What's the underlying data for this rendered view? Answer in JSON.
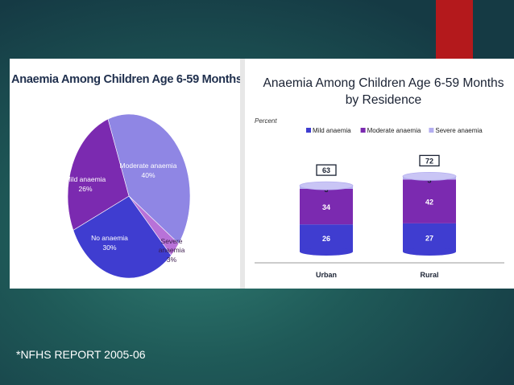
{
  "footnote": "*NFHS REPORT 2005-06",
  "colors": {
    "accent_red": "#b4191c",
    "mild": "#7b2ab0",
    "moderate": "#8f86e4",
    "none": "#3f3dd0",
    "severe": "#b872d8"
  },
  "chart_data": [
    {
      "type": "pie",
      "title": "Anaemia Among Children Age 6-59 Months",
      "slices": [
        {
          "label": "Moderate anaemia",
          "value": 40,
          "value_label": "40%",
          "color": "#8f86e4"
        },
        {
          "label": "Severe anaemia",
          "value": 3,
          "value_label": "3%",
          "color": "#b872d8"
        },
        {
          "label": "No anaemia",
          "value": 30,
          "value_label": "30%",
          "color": "#3f3dd0"
        },
        {
          "label": "Mild anaemia",
          "value": 26,
          "value_label": "26%",
          "color": "#7b2ab0"
        }
      ]
    },
    {
      "type": "bar",
      "stacked": true,
      "title_line1": "Anaemia Among Children Age 6-59 Months",
      "title_line2": "by Residence",
      "ylabel": "Percent",
      "categories": [
        "Urban",
        "Rural"
      ],
      "totals": [
        63,
        72
      ],
      "legend_position": "top-right",
      "series": [
        {
          "name": "Mild anaemia",
          "values": [
            26,
            27
          ],
          "color": "#3f3dd0"
        },
        {
          "name": "Moderate anaemia",
          "values": [
            34,
            42
          ],
          "color": "#7b2ab0"
        },
        {
          "name": "Severe anaemia",
          "values": [
            3,
            3
          ],
          "color": "#b4aef0"
        }
      ]
    }
  ]
}
